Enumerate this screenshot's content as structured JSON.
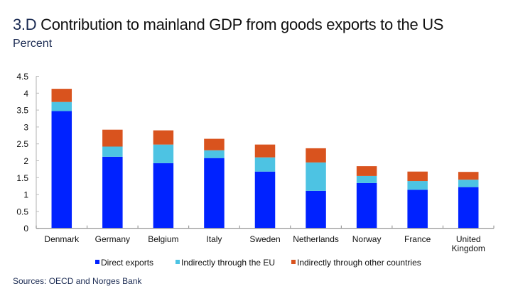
{
  "header": {
    "figure_number": "3.D",
    "title": "Contribution to mainland GDP from goods exports to the US",
    "subtitle": "Percent"
  },
  "footer": {
    "source": "Sources: OECD and Norges Bank"
  },
  "chart_data": {
    "type": "bar",
    "stacked": true,
    "title": "Contribution to mainland GDP from goods exports to the US",
    "xlabel": "",
    "ylabel": "Percent",
    "ylim": [
      0,
      4.5
    ],
    "yticks": [
      0,
      0.5,
      1,
      1.5,
      2,
      2.5,
      3,
      3.5,
      4,
      4.5
    ],
    "ytick_labels": [
      "0",
      "0.5",
      "1",
      "1.5",
      "2",
      "2.5",
      "3",
      "3.5",
      "4",
      "4.5"
    ],
    "grid": false,
    "legend_position": "bottom",
    "categories": [
      "Denmark",
      "Germany",
      "Belgium",
      "Italy",
      "Sweden",
      "Netherlands",
      "Norway",
      "France",
      "United Kingdom"
    ],
    "category_labels": [
      [
        "Denmark"
      ],
      [
        "Germany"
      ],
      [
        "Belgium"
      ],
      [
        "Italy"
      ],
      [
        "Sweden"
      ],
      [
        "Netherlands"
      ],
      [
        "Norway"
      ],
      [
        "France"
      ],
      [
        "United",
        "Kingdom"
      ]
    ],
    "series": [
      {
        "name": "Direct exports",
        "color": "#0022FF",
        "values": [
          3.47,
          2.12,
          1.93,
          2.08,
          1.68,
          1.11,
          1.34,
          1.14,
          1.22
        ]
      },
      {
        "name": "Indirectly through the EU",
        "color": "#4DC3E3",
        "values": [
          0.27,
          0.3,
          0.55,
          0.23,
          0.42,
          0.84,
          0.21,
          0.26,
          0.22
        ]
      },
      {
        "name": "Indirectly through other countries",
        "color": "#D9531E",
        "values": [
          0.39,
          0.5,
          0.42,
          0.34,
          0.38,
          0.42,
          0.29,
          0.28,
          0.23
        ]
      }
    ]
  }
}
